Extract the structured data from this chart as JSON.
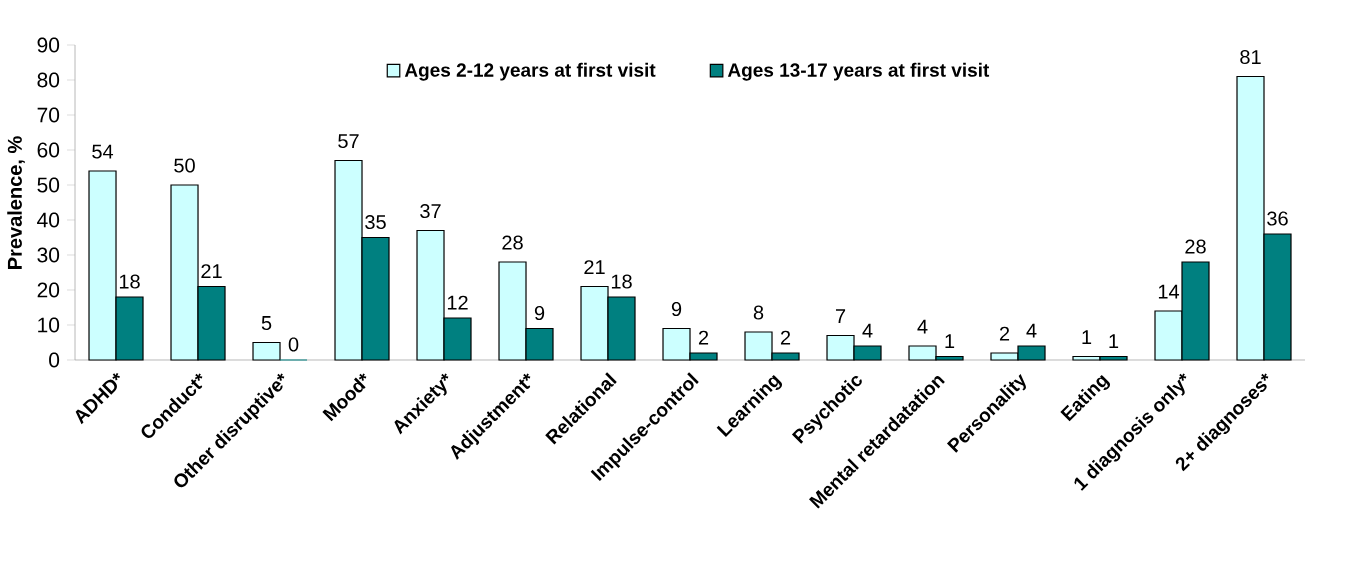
{
  "chart_data": {
    "type": "bar",
    "ylabel": "Prevalence, %",
    "categories": [
      "ADHD*",
      "Conduct*",
      "Other disruptive*",
      "Mood*",
      "Anxiety*",
      "Adjustment*",
      "Relational",
      "Impulse-control",
      "Learning",
      "Psychotic",
      "Mental retardatation",
      "Personality",
      "Eating",
      "1 diagnosis only*",
      "2+ diagnoses*"
    ],
    "series": [
      {
        "name": "Ages 2-12 years at first visit",
        "color": "#ccffff",
        "values": [
          54,
          50,
          5,
          57,
          37,
          28,
          21,
          9,
          8,
          7,
          4,
          2,
          1,
          14,
          81
        ]
      },
      {
        "name": "Ages 13-17 years at first visit",
        "color": "#008080",
        "values": [
          18,
          21,
          0,
          35,
          12,
          9,
          18,
          2,
          2,
          4,
          1,
          4,
          1,
          28,
          36
        ]
      }
    ],
    "ylim": [
      0,
      90
    ],
    "yticks": [
      0,
      10,
      20,
      30,
      40,
      50,
      60,
      70,
      80,
      90
    ],
    "data_labels": true,
    "legend": "top",
    "grid": false
  }
}
